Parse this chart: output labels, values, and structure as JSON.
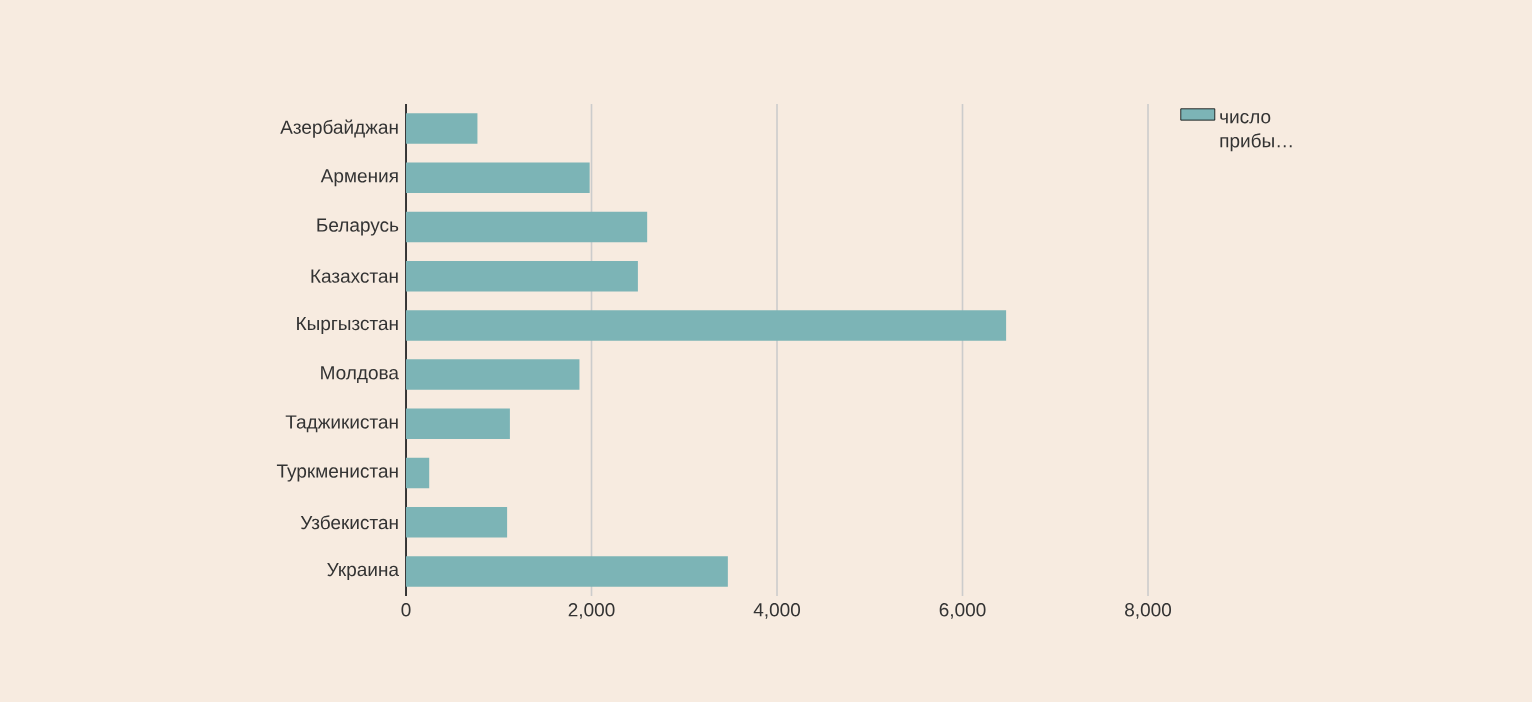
{
  "chart_data": {
    "type": "bar",
    "orientation": "horizontal",
    "categories": [
      "Азербайджан",
      "Армения",
      "Беларусь",
      "Казахстан",
      "Кыргызстан",
      "Молдова",
      "Таджикистан",
      "Туркменистан",
      "Узбекистан",
      "Украина"
    ],
    "series": [
      {
        "name": "число прибы…",
        "color": "#7cb4b6",
        "values": [
          770,
          1980,
          2600,
          2500,
          6470,
          1870,
          1120,
          250,
          1090,
          3470
        ]
      }
    ],
    "xlim": [
      0,
      8000
    ],
    "xticks": [
      0,
      {
        "value": 2000,
        "label": "2,000"
      },
      {
        "value": 4000,
        "label": "4,000"
      },
      {
        "value": 6000,
        "label": "6,000"
      },
      {
        "value": 8000,
        "label": "8,000"
      }
    ],
    "grid": "x",
    "legend": "top right"
  }
}
